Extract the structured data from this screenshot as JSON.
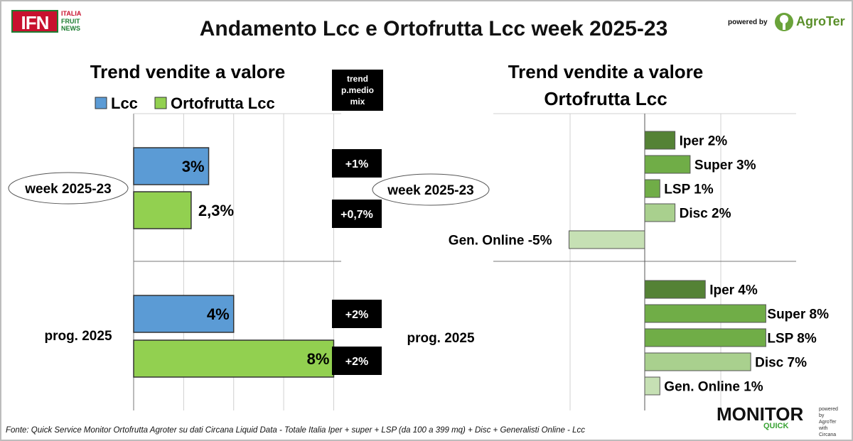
{
  "header": {
    "logo_mark": "IFN",
    "logo_words": [
      "ITALIA",
      "FRUIT",
      "NEWS"
    ],
    "title": "Andamento Lcc e Ortofrutta Lcc week 2025-23",
    "powered_by": "powered by",
    "partner": "AgroTer"
  },
  "colors": {
    "lcc": "#5b9bd5",
    "ortofrutta_lcc": "#92d050",
    "iper": "#548235",
    "super": "#70ad47",
    "lsp": "#70ad47",
    "disc": "#a9d08e",
    "gen_online": "#c6e0b4",
    "badge_bg": "#000000",
    "badge_text": "#ffffff"
  },
  "chart_data": [
    {
      "type": "bar",
      "orientation": "horizontal",
      "title": "Trend vendite a valore",
      "categories": [
        "week 2025-23",
        "prog. 2025"
      ],
      "series": [
        {
          "name": "Lcc",
          "values": [
            3,
            4
          ],
          "labels": [
            "3%",
            "4%"
          ]
        },
        {
          "name": "Ortofrutta Lcc",
          "values": [
            2.3,
            8
          ],
          "labels": [
            "2,3%",
            "8%"
          ]
        }
      ],
      "xlim": [
        0,
        8.3
      ],
      "grid": true,
      "legend": "top",
      "side_panel": {
        "title_lines": [
          "trend",
          "p.medio",
          "mix"
        ],
        "values": [
          [
            "+1%",
            "+0,7%"
          ],
          [
            "+2%",
            "+2%"
          ]
        ]
      }
    },
    {
      "type": "bar",
      "orientation": "horizontal",
      "title": "Trend vendite a valore",
      "subtitle": "Ortofrutta Lcc",
      "groups": [
        {
          "name": "week 2025-23",
          "bars": [
            {
              "channel": "Iper",
              "value": 2,
              "label": "Iper 2%"
            },
            {
              "channel": "Super",
              "value": 3,
              "label": "Super 3%"
            },
            {
              "channel": "LSP",
              "value": 1,
              "label": "LSP 1%"
            },
            {
              "channel": "Disc",
              "value": 2,
              "label": "Disc 2%"
            },
            {
              "channel": "Gen. Online",
              "value": -5,
              "label": "Gen. Online -5%"
            }
          ]
        },
        {
          "name": "prog. 2025",
          "bars": [
            {
              "channel": "Iper",
              "value": 4,
              "label": "Iper 4%"
            },
            {
              "channel": "Super",
              "value": 8,
              "label": "Super 8%"
            },
            {
              "channel": "LSP",
              "value": 8,
              "label": "LSP 8%"
            },
            {
              "channel": "Disc",
              "value": 7,
              "label": "Disc 7%"
            },
            {
              "channel": "Gen. Online",
              "value": 1,
              "label": "Gen. Online 1%"
            }
          ]
        }
      ],
      "xlim": [
        -10,
        10
      ],
      "grid": true
    }
  ],
  "footer": {
    "source": "Fonte: Quick Service Monitor Ortofrutta Agroter su dati Circana Liquid Data - Totale Italia Iper + super + LSP (da 100 a 399 mq) + Disc + Generalisti Online - Lcc",
    "monitor_word": "MONITOR",
    "monitor_quick": "QUICK",
    "monitor_side": [
      "powered by",
      "AgroTer",
      "with",
      "Circana"
    ]
  }
}
